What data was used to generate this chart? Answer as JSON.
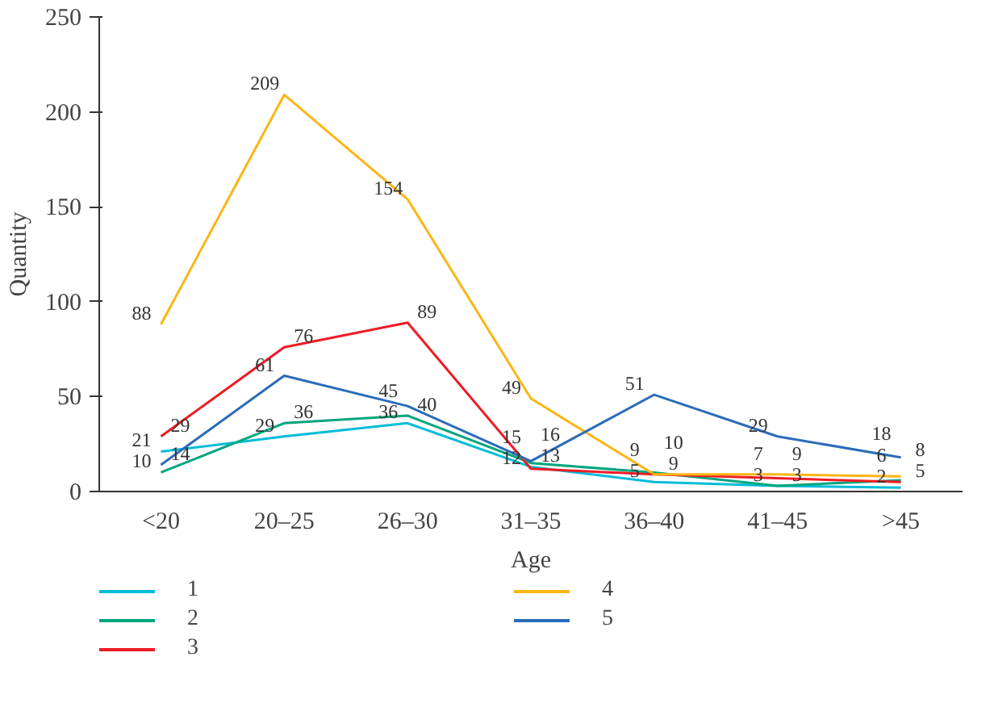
{
  "chart_data": {
    "type": "line",
    "xlabel": "Age",
    "ylabel": "Quantity",
    "categories": [
      "<20",
      "20–25",
      "26–30",
      "31–35",
      "36–40",
      "41–45",
      ">45"
    ],
    "series": [
      {
        "name": "1",
        "color": "#00bcd8",
        "values": [
          21,
          29,
          36,
          13,
          5,
          3,
          2
        ]
      },
      {
        "name": "2",
        "color": "#00a67e",
        "values": [
          10,
          36,
          40,
          15,
          10,
          3,
          6
        ]
      },
      {
        "name": "3",
        "color": "#ee1c25",
        "values": [
          29,
          76,
          89,
          12,
          9,
          7,
          5
        ]
      },
      {
        "name": "4",
        "color": "#fdb515",
        "values": [
          88,
          209,
          154,
          49,
          9,
          9,
          8
        ]
      },
      {
        "name": "5",
        "color": "#2b6cb8",
        "values": [
          14,
          61,
          45,
          16,
          51,
          29,
          18
        ]
      }
    ],
    "ylim": [
      0,
      250
    ],
    "yticks": [
      0,
      50,
      100,
      150,
      200,
      250
    ],
    "grid": false,
    "legend": "bottom",
    "data_labels": true,
    "marker": "none",
    "line_style": "solid"
  }
}
